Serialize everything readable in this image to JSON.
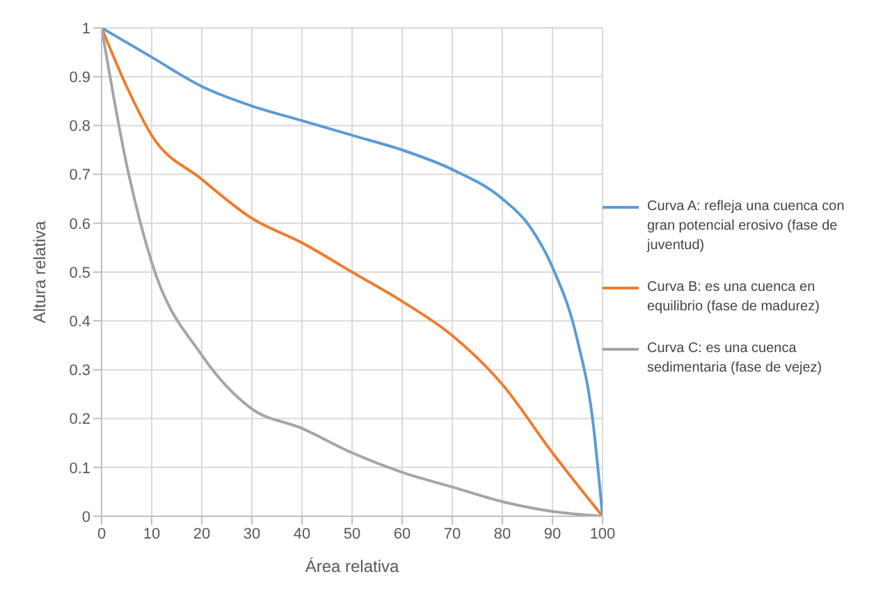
{
  "chart_data": {
    "type": "line",
    "xlabel": "Área relativa",
    "ylabel": "Altura relativa",
    "xlim": [
      0,
      100
    ],
    "xticks": [
      0,
      10,
      20,
      30,
      40,
      50,
      60,
      70,
      80,
      90,
      100
    ],
    "ylim": [
      0,
      1
    ],
    "yticks": [
      0,
      0.1,
      0.2,
      0.3,
      0.4,
      0.5,
      0.6,
      0.7,
      0.8,
      0.9,
      1
    ],
    "grid": true,
    "legend": "right",
    "marker": "none",
    "line_style": "solid",
    "series": [
      {
        "name": "Curva A: refleja una cuenca con gran potencial erosivo (fase de juventud)",
        "color": "#5b9bd5",
        "x": [
          0,
          10,
          20,
          30,
          40,
          50,
          60,
          70,
          80,
          85,
          90,
          95,
          98,
          100
        ],
        "values": [
          1,
          0.94,
          0.88,
          0.84,
          0.81,
          0.78,
          0.75,
          0.71,
          0.65,
          0.6,
          0.51,
          0.36,
          0.2,
          0
        ]
      },
      {
        "name": "Curva B: es una cuenca en equilibrio (fase de madurez)",
        "color": "#ed7d31",
        "x": [
          0,
          5,
          10,
          20,
          30,
          40,
          50,
          60,
          70,
          80,
          90,
          100
        ],
        "values": [
          1,
          0.88,
          0.78,
          0.69,
          0.61,
          0.56,
          0.5,
          0.44,
          0.37,
          0.27,
          0.13,
          0
        ]
      },
      {
        "name": "Curva C: es una cuenca sedimentaria (fase de vejez)",
        "color": "#a5a5a5",
        "x": [
          0,
          5,
          10,
          20,
          30,
          40,
          50,
          60,
          70,
          80,
          90,
          100
        ],
        "values": [
          1,
          0.72,
          0.52,
          0.33,
          0.22,
          0.18,
          0.13,
          0.09,
          0.06,
          0.03,
          0.01,
          0
        ]
      }
    ]
  }
}
